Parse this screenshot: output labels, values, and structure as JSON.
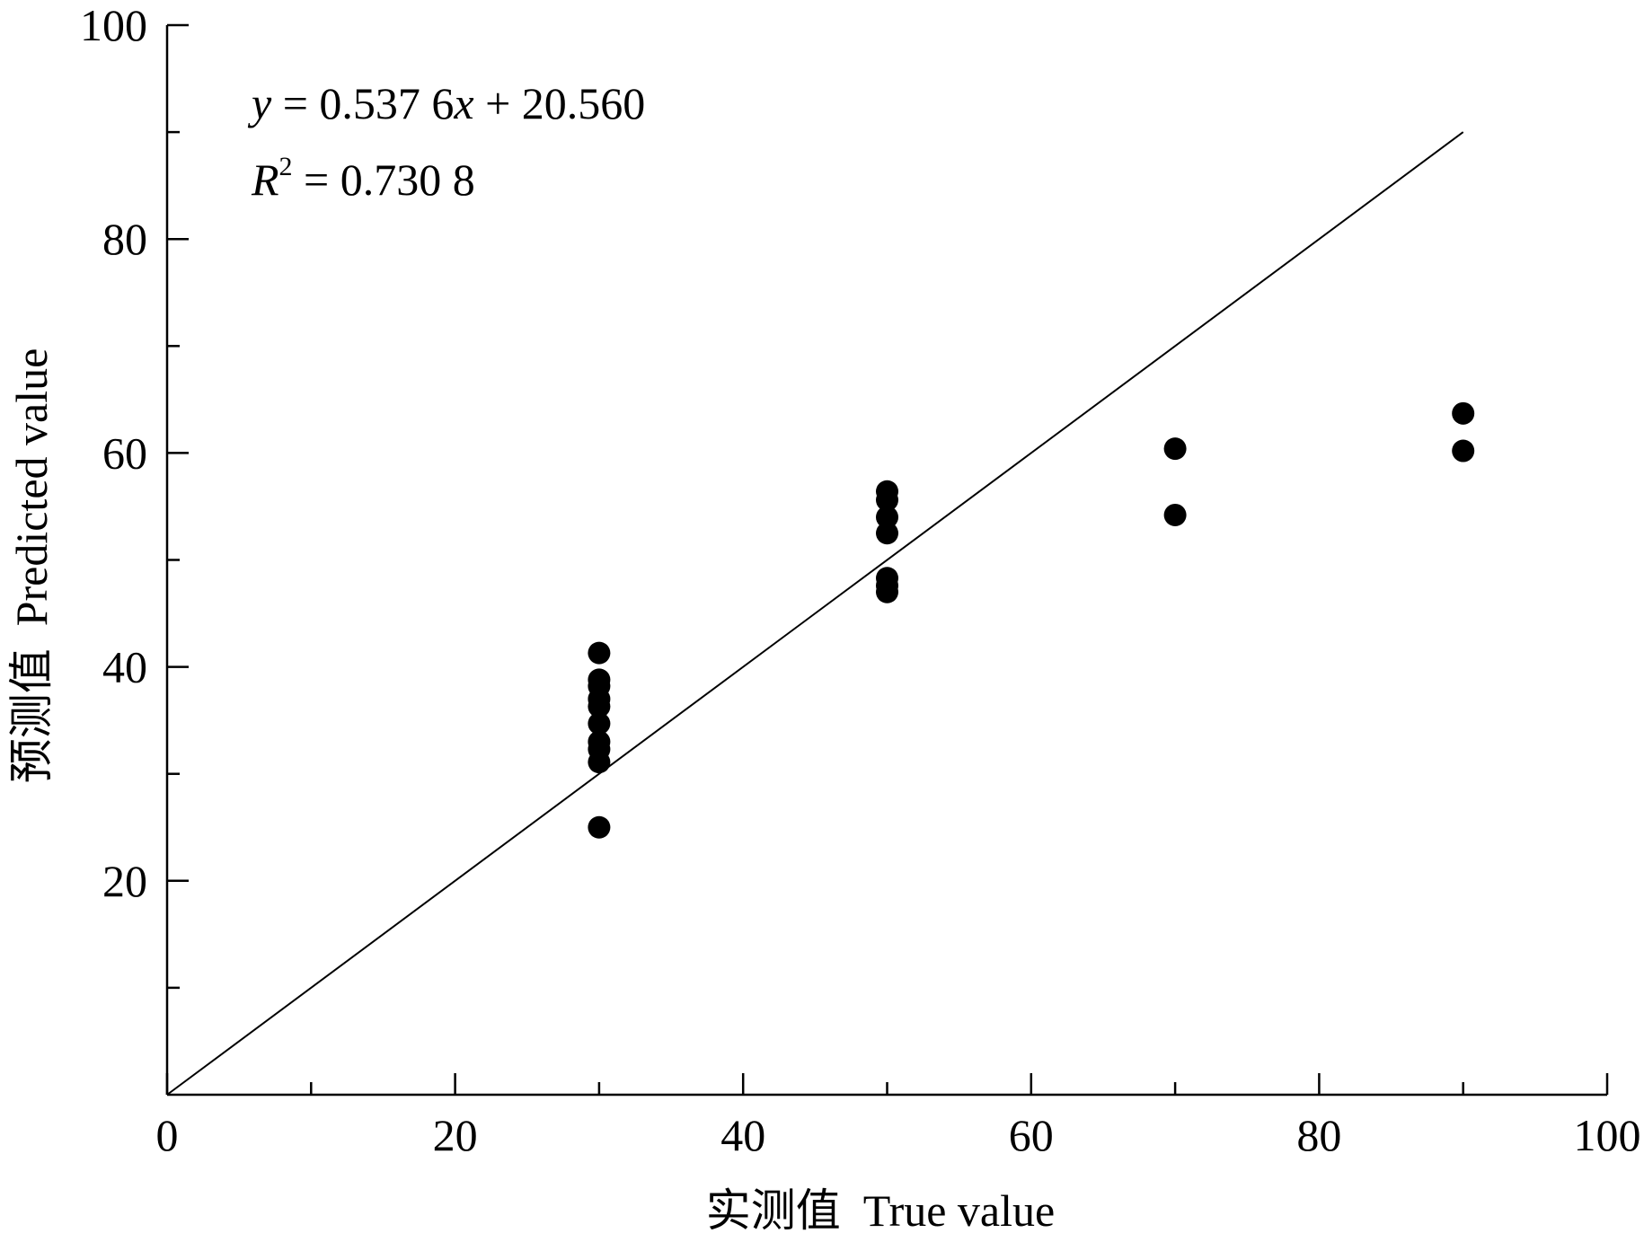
{
  "chart_data": {
    "type": "scatter",
    "title": "",
    "xlabel": "实测值  True value",
    "ylabel": "预测值  Predicted value",
    "xlim": [
      0,
      100
    ],
    "ylim": [
      0,
      100
    ],
    "xticks": [
      0,
      20,
      40,
      60,
      80,
      100
    ],
    "yticks": [
      20,
      40,
      60,
      80,
      100
    ],
    "xticklabels": [
      "0",
      "20",
      "40",
      "60",
      "80",
      "100"
    ],
    "yticklabels": [
      "20",
      "40",
      "60",
      "80",
      "100"
    ],
    "x_minor_ticks": [
      10,
      30,
      50,
      70,
      90
    ],
    "y_minor_ticks": [
      10,
      30,
      50,
      70,
      90
    ],
    "grid": false,
    "marker_color": "#000000",
    "line_color": "#000000",
    "points": [
      {
        "x": 30,
        "y": 41.3
      },
      {
        "x": 30,
        "y": 38.8
      },
      {
        "x": 30,
        "y": 38.2
      },
      {
        "x": 30,
        "y": 37.0
      },
      {
        "x": 30,
        "y": 36.3
      },
      {
        "x": 30,
        "y": 34.7
      },
      {
        "x": 30,
        "y": 33.0
      },
      {
        "x": 30,
        "y": 32.3
      },
      {
        "x": 30,
        "y": 31.1
      },
      {
        "x": 30,
        "y": 25.0
      },
      {
        "x": 50,
        "y": 56.4
      },
      {
        "x": 50,
        "y": 55.6
      },
      {
        "x": 50,
        "y": 54.0
      },
      {
        "x": 50,
        "y": 52.5
      },
      {
        "x": 50,
        "y": 48.3
      },
      {
        "x": 50,
        "y": 47.6
      },
      {
        "x": 50,
        "y": 47.0
      },
      {
        "x": 70,
        "y": 60.4
      },
      {
        "x": 70,
        "y": 54.2
      },
      {
        "x": 90,
        "y": 63.7
      },
      {
        "x": 90,
        "y": 60.2
      }
    ],
    "reference_line": {
      "x": [
        0,
        90
      ],
      "y": [
        0,
        90
      ]
    },
    "annotations": {
      "equation": {
        "y_var": "y",
        "eq1": " = 0.537 6",
        "x_var": "x",
        "eq2": " + 20.560"
      },
      "r2": {
        "r_var": "R",
        "sup": "2",
        "value": " = 0.730 8"
      }
    }
  }
}
